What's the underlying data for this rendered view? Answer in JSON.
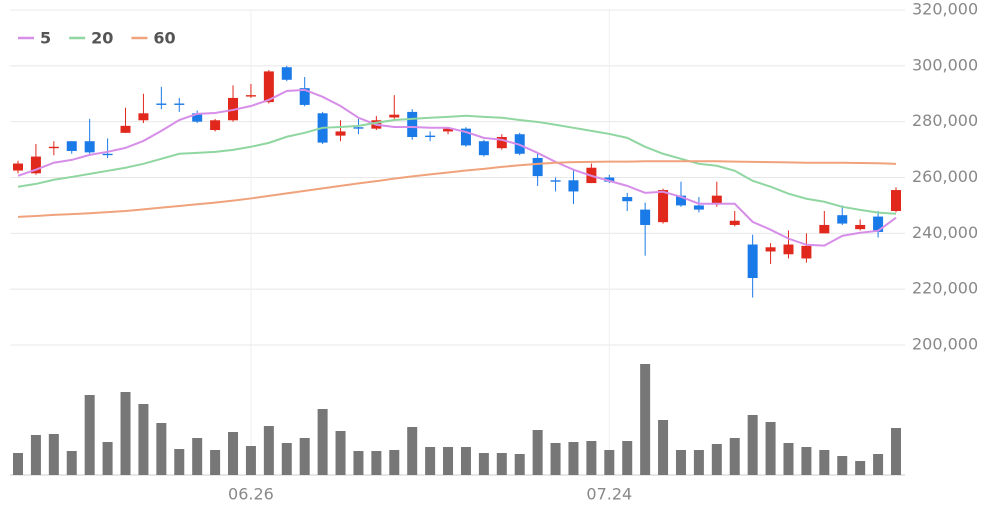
{
  "chart_data": {
    "type": "candlestick",
    "categories": [
      null,
      null,
      null,
      null,
      null,
      null,
      null,
      null,
      null,
      null,
      null,
      null,
      null,
      "06.26",
      null,
      null,
      null,
      null,
      null,
      null,
      null,
      null,
      null,
      null,
      null,
      null,
      null,
      null,
      null,
      null,
      null,
      null,
      null,
      "07.24",
      null,
      null,
      null,
      null,
      null,
      null,
      null,
      null,
      null,
      null,
      null,
      null,
      null,
      null,
      null,
      null
    ],
    "open": [
      262500,
      261500,
      270500,
      273000,
      273000,
      268500,
      276000,
      280500,
      286500,
      286500,
      283000,
      277000,
      280500,
      289000,
      287000,
      299500,
      292000,
      283000,
      275000,
      278000,
      277500,
      281500,
      283500,
      275000,
      276500,
      277500,
      273000,
      270500,
      275500,
      267000,
      259000,
      259000,
      258000,
      260000,
      253000,
      248500,
      244000,
      253500,
      250000,
      250500,
      243000,
      236000,
      233500,
      232500,
      231000,
      240000,
      246500,
      241500,
      246000,
      248000
    ],
    "high": [
      266000,
      272000,
      273000,
      273000,
      281000,
      274000,
      285000,
      290000,
      292500,
      288500,
      284000,
      281000,
      293000,
      293500,
      298500,
      300000,
      296000,
      283500,
      280500,
      281000,
      282000,
      289500,
      284500,
      276500,
      278000,
      278000,
      273500,
      275500,
      276000,
      268500,
      260000,
      262500,
      265000,
      261000,
      254500,
      251000,
      256000,
      258500,
      253000,
      258500,
      248000,
      239500,
      236500,
      241000,
      240000,
      248000,
      250000,
      245000,
      248000,
      256500
    ],
    "low": [
      261500,
      261000,
      268000,
      268500,
      268500,
      267000,
      276000,
      279500,
      284500,
      283500,
      279500,
      276500,
      280000,
      288500,
      286500,
      294500,
      285500,
      272000,
      273000,
      275500,
      277000,
      281000,
      273500,
      273000,
      275500,
      271000,
      267500,
      270000,
      268000,
      257000,
      255000,
      250500,
      258000,
      258000,
      248000,
      232000,
      243500,
      249500,
      247500,
      249500,
      242500,
      217000,
      229000,
      231000,
      229500,
      240000,
      243000,
      241000,
      238500,
      247500
    ],
    "close": [
      265000,
      267500,
      271000,
      269500,
      269000,
      268000,
      278500,
      283000,
      286000,
      286000,
      280000,
      280500,
      288500,
      289500,
      298000,
      295000,
      286000,
      272500,
      276500,
      277500,
      280500,
      282500,
      274500,
      274500,
      277500,
      271500,
      268000,
      274500,
      268500,
      260500,
      258500,
      255000,
      263500,
      258500,
      251500,
      243000,
      255500,
      250000,
      248500,
      253500,
      244500,
      224000,
      235000,
      236000,
      235500,
      243000,
      243500,
      243000,
      240500,
      255500
    ],
    "up_color": "#e0281c",
    "down_color": "#1a7ae8",
    "series": [
      {
        "name": "5",
        "color": "#d68ee8",
        "values": [
          260600,
          262800,
          265300,
          266300,
          268100,
          269200,
          270600,
          273100,
          276700,
          280600,
          282800,
          283100,
          284200,
          285600,
          287800,
          291000,
          291400,
          288900,
          285600,
          281400,
          278900,
          278100,
          278100,
          277800,
          277800,
          276300,
          274200,
          273500,
          271700,
          268800,
          265600,
          262800,
          260600,
          258800,
          257000,
          254500,
          254900,
          253100,
          250600,
          250600,
          250600,
          244100,
          241300,
          238100,
          235900,
          235600,
          239100,
          240200,
          240900,
          245600
        ]
      },
      {
        "name": "20",
        "color": "#8fd6a0",
        "values": [
          256700,
          257700,
          259200,
          260200,
          261300,
          262400,
          263500,
          264900,
          266700,
          268500,
          268800,
          269200,
          269900,
          271000,
          272400,
          274600,
          276000,
          277800,
          278100,
          278500,
          279600,
          280600,
          281000,
          281400,
          281700,
          282100,
          281700,
          281400,
          280600,
          279900,
          278900,
          277800,
          276700,
          275600,
          274200,
          271000,
          268500,
          266700,
          264900,
          264200,
          262400,
          258800,
          256700,
          254200,
          252400,
          251300,
          249500,
          248400,
          247400,
          247000
        ]
      },
      {
        "name": "60",
        "color": "#f0a27c",
        "values": [
          245900,
          246200,
          246600,
          246900,
          247200,
          247600,
          248000,
          248600,
          249200,
          249800,
          250400,
          251000,
          251700,
          252500,
          253400,
          254300,
          255200,
          256100,
          257000,
          257900,
          258700,
          259600,
          260400,
          261100,
          261800,
          262500,
          263100,
          263800,
          264400,
          264900,
          265300,
          265500,
          265600,
          265700,
          265700,
          265800,
          265800,
          265800,
          265800,
          265800,
          265700,
          265600,
          265500,
          265400,
          265300,
          265300,
          265300,
          265200,
          265100,
          264900
        ]
      }
    ],
    "volume": [
      22,
      40,
      41,
      24,
      80,
      33,
      83,
      71,
      52,
      26,
      37,
      25,
      43,
      29,
      49,
      32,
      37,
      66,
      44,
      24,
      24,
      25,
      48,
      28,
      28,
      28,
      22,
      22,
      21,
      45,
      32,
      33,
      34,
      25,
      34,
      111,
      55,
      25,
      25,
      31,
      37,
      60,
      53,
      32,
      28,
      25,
      19,
      14,
      21,
      47
    ],
    "volume_color": "#777777",
    "ylim": [
      200000,
      320000
    ],
    "yticks": [
      {
        "value": 200000,
        "label": "200,000"
      },
      {
        "value": 220000,
        "label": "220,000"
      },
      {
        "value": 240000,
        "label": "240,000"
      },
      {
        "value": 260000,
        "label": "260,000"
      },
      {
        "value": 280000,
        "label": "280,000"
      },
      {
        "value": 300000,
        "label": "300,000"
      },
      {
        "value": 320000,
        "label": "320,000"
      }
    ],
    "grid": true
  }
}
